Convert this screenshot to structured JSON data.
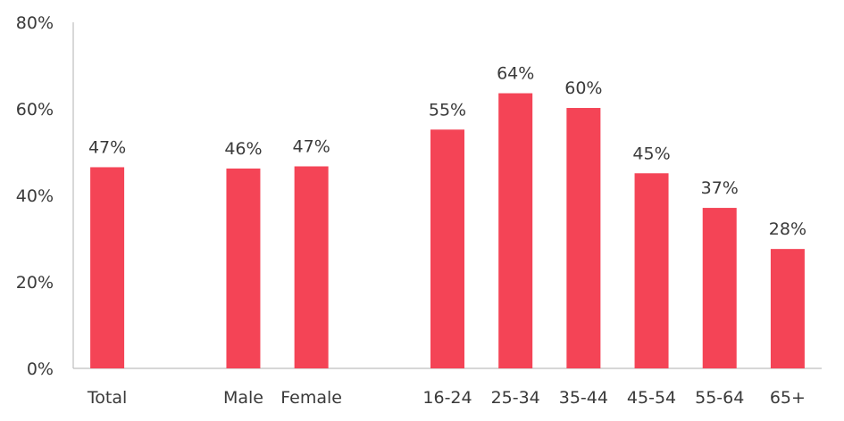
{
  "chart_data": {
    "type": "bar",
    "categories": [
      "Total",
      "",
      "Male",
      "Female",
      "",
      "16-24",
      "25-34",
      "35-44",
      "45-54",
      "55-64",
      "65+"
    ],
    "values": [
      46.5,
      null,
      46.2,
      46.7,
      null,
      55.2,
      63.6,
      60.2,
      45.1,
      37.1,
      27.6
    ],
    "data_labels": [
      "47%",
      "",
      "46%",
      "47%",
      "",
      "55%",
      "64%",
      "60%",
      "45%",
      "37%",
      "28%"
    ],
    "ylim": [
      0,
      80
    ],
    "yticks": [
      0,
      20,
      40,
      60,
      80
    ],
    "ytick_labels": [
      "0%",
      "20%",
      "40%",
      "60%",
      "80%"
    ],
    "title": "",
    "xlabel": "",
    "ylabel": "",
    "grid": false,
    "legend": "none",
    "bar_color": "#f44456"
  }
}
